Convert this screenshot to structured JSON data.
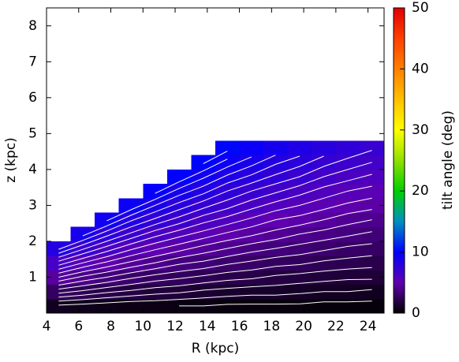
{
  "chart_data": {
    "type": "heatmap",
    "x_label": "R (kpc)",
    "y_label": "z (kpc)",
    "xlim": [
      4,
      25
    ],
    "xticks": [
      4,
      6,
      8,
      10,
      12,
      14,
      16,
      18,
      20,
      22,
      24
    ],
    "ylim": [
      0,
      8.5
    ],
    "yticks": [
      1,
      2,
      3,
      4,
      5,
      6,
      7,
      8
    ],
    "x": [
      4.75,
      6.25,
      7.75,
      9.25,
      10.75,
      12.25,
      13.75,
      15.25,
      16.75,
      18.25,
      19.75,
      21.25,
      22.75,
      24.25
    ],
    "y": [
      0.2,
      0.6,
      1.0,
      1.4,
      1.8,
      2.2,
      2.6,
      3.0,
      3.4,
      3.8,
      4.2,
      4.6
    ],
    "values": [
      [
        0.9,
        0.8,
        0.7,
        0.6,
        0.6,
        0.5,
        0.5,
        0.4,
        0.4,
        0.4,
        0.4,
        0.3,
        0.3,
        0.3
      ],
      [
        2.7,
        2.4,
        2.1,
        1.9,
        1.7,
        1.6,
        1.4,
        1.3,
        1.2,
        1.2,
        1.1,
        1.0,
        1.0,
        0.9
      ],
      [
        4.5,
        3.9,
        3.5,
        3.1,
        2.8,
        2.6,
        2.4,
        2.2,
        2.1,
        1.9,
        1.8,
        1.7,
        1.6,
        1.6
      ],
      [
        6.3,
        5.5,
        4.9,
        4.4,
        4.0,
        3.6,
        3.4,
        3.1,
        2.9,
        2.7,
        2.6,
        2.4,
        2.3,
        2.2
      ],
      [
        8.1,
        7.1,
        6.3,
        5.6,
        5.1,
        4.7,
        4.3,
        4.0,
        3.7,
        3.5,
        3.3,
        3.1,
        2.9,
        2.8
      ],
      [
        null,
        8.7,
        7.7,
        6.9,
        6.2,
        5.7,
        5.3,
        4.9,
        4.6,
        4.3,
        4.0,
        3.8,
        3.6,
        3.4
      ],
      [
        null,
        null,
        9.1,
        8.1,
        7.4,
        6.8,
        6.2,
        5.8,
        5.4,
        5.0,
        4.8,
        4.5,
        4.2,
        4.0
      ],
      [
        null,
        null,
        null,
        9.4,
        8.5,
        7.8,
        7.2,
        6.7,
        6.2,
        5.8,
        5.5,
        5.2,
        4.9,
        4.7
      ],
      [
        null,
        null,
        null,
        null,
        9.7,
        8.8,
        8.2,
        7.5,
        7.0,
        6.6,
        6.2,
        5.8,
        5.5,
        5.3
      ],
      [
        null,
        null,
        null,
        null,
        null,
        9.9,
        9.1,
        8.4,
        7.9,
        7.4,
        7.0,
        6.5,
        6.2,
        5.9
      ],
      [
        null,
        null,
        null,
        null,
        null,
        null,
        10.1,
        9.3,
        8.7,
        8.1,
        7.7,
        7.2,
        6.8,
        6.5
      ],
      [
        null,
        null,
        null,
        null,
        null,
        null,
        null,
        10.2,
        9.5,
        8.9,
        8.4,
        7.9,
        7.5,
        7.1
      ]
    ],
    "colormap": [
      "#000000",
      "#6000b0",
      "#0000ff",
      "#0090c0",
      "#00d000",
      "#90e000",
      "#ffff00",
      "#ffc000",
      "#ff8000",
      "#ff4000",
      "#e00000"
    ],
    "contour_levels": [
      0.5,
      1,
      1.5,
      2,
      2.5,
      3,
      3.5,
      4,
      4.5,
      5,
      5.5,
      6,
      6.5,
      7,
      7.5,
      8,
      8.5,
      9,
      9.5,
      10
    ],
    "contour_color": "#ffffff",
    "colorbar": {
      "label": "tilt angle (deg)",
      "lim": [
        0,
        50
      ],
      "ticks": [
        0,
        10,
        20,
        30,
        40,
        50
      ]
    }
  }
}
